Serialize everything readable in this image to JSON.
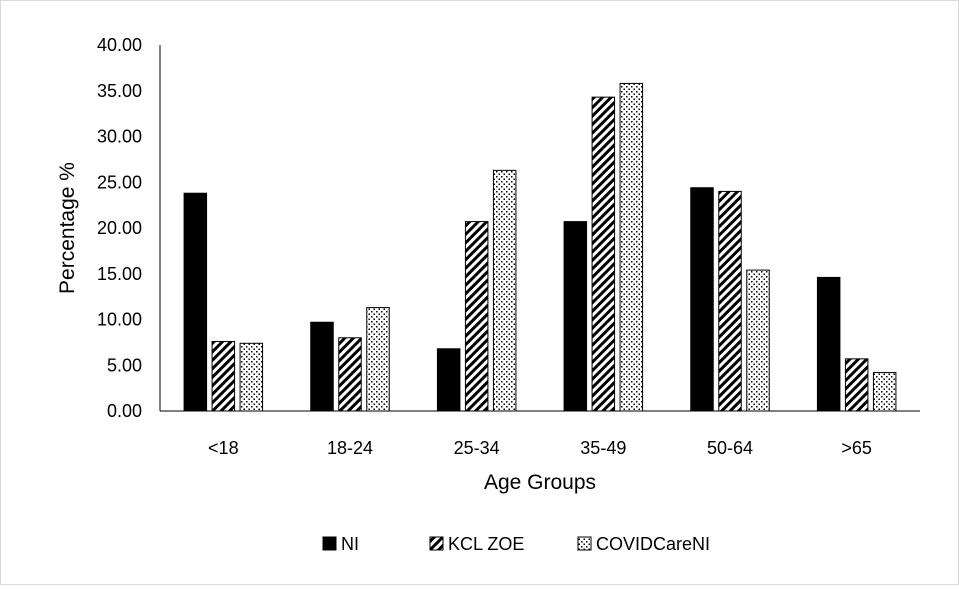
{
  "chart_data": {
    "type": "bar",
    "categories": [
      "<18",
      "18-24",
      "25-34",
      "35-49",
      "50-64",
      ">65"
    ],
    "series": [
      {
        "name": "NI",
        "values": [
          23.8,
          9.7,
          6.8,
          20.7,
          24.4,
          14.6
        ],
        "pattern": "solid"
      },
      {
        "name": "KCL ZOE",
        "values": [
          7.6,
          8.0,
          20.7,
          34.3,
          24.0,
          5.7
        ],
        "pattern": "diagonal-hatch"
      },
      {
        "name": "COVIDCareNI",
        "values": [
          7.4,
          11.3,
          26.3,
          35.8,
          15.4,
          4.2
        ],
        "pattern": "dots"
      }
    ],
    "title": "",
    "xlabel": "Age Groups",
    "ylabel": "Percentage %",
    "ylim": [
      0,
      40
    ],
    "yticks": [
      "0.00",
      "5.00",
      "10.00",
      "15.00",
      "20.00",
      "25.00",
      "30.00",
      "35.00",
      "40.00"
    ],
    "grid": false,
    "legend_position": "bottom",
    "colors": {
      "bar_fill": "#000000",
      "bar_outline": "#000000",
      "background": "#ffffff"
    }
  }
}
